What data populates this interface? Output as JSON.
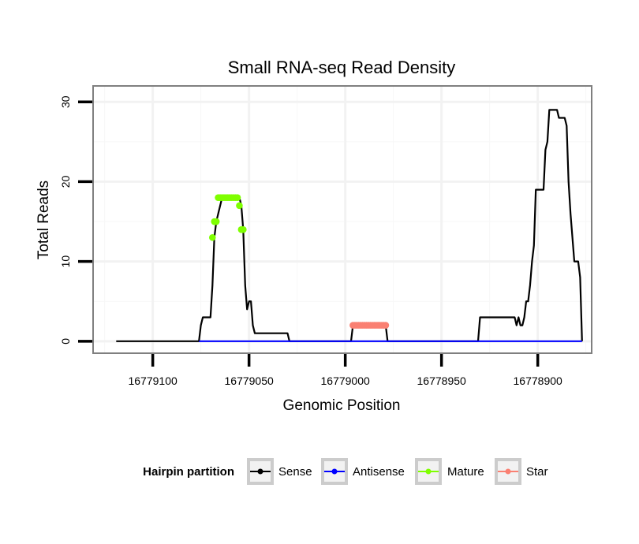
{
  "chart_data": {
    "type": "line",
    "title": "Small RNA-seq Read Density",
    "xlabel": "Genomic Position",
    "ylabel": "Total Reads",
    "xlim": [
      16779131,
      16778872
    ],
    "ylim": [
      -1.5,
      32
    ],
    "x_reversed": true,
    "grid": true,
    "x_ticks": [
      16779100,
      16779050,
      16779000,
      16778950,
      16778900
    ],
    "x_tick_labels": [
      "16779100",
      "16779050",
      "16779000",
      "16778950",
      "16778900"
    ],
    "y_ticks": [
      0,
      10,
      20,
      30
    ],
    "y_tick_labels": [
      "0",
      "10",
      "20",
      "30"
    ],
    "legend": {
      "title": "Hairpin partition",
      "position": "bottom",
      "entries": [
        {
          "label": "Sense",
          "color": "#000000"
        },
        {
          "label": "Antisense",
          "color": "#0000ff"
        },
        {
          "label": "Mature",
          "color": "#7fff00"
        },
        {
          "label": "Star",
          "color": "#fa8072"
        }
      ]
    },
    "series": [
      {
        "name": "Sense",
        "color": "#000000",
        "points": [
          [
            16779119,
            0
          ],
          [
            16779076,
            0
          ],
          [
            16779075,
            2
          ],
          [
            16779074,
            3
          ],
          [
            16779070,
            3
          ],
          [
            16779069,
            7
          ],
          [
            16779068,
            13
          ],
          [
            16779067,
            15
          ],
          [
            16779065,
            17
          ],
          [
            16779064,
            18
          ],
          [
            16779055,
            18
          ],
          [
            16779054,
            17
          ],
          [
            16779053,
            14
          ],
          [
            16779052,
            7
          ],
          [
            16779051,
            4
          ],
          [
            16779050,
            5
          ],
          [
            16779049,
            5
          ],
          [
            16779048,
            2
          ],
          [
            16779047,
            1
          ],
          [
            16779030,
            1
          ],
          [
            16779029,
            0
          ],
          [
            16778997,
            0
          ],
          [
            16778996,
            2
          ],
          [
            16778979,
            2
          ],
          [
            16778978,
            0
          ],
          [
            16778931,
            0
          ],
          [
            16778930,
            3
          ],
          [
            16778912,
            3
          ],
          [
            16778911,
            2
          ],
          [
            16778910,
            3
          ],
          [
            16778909,
            2
          ],
          [
            16778908,
            2
          ],
          [
            16778907,
            3
          ],
          [
            16778906,
            5
          ],
          [
            16778905,
            5
          ],
          [
            16778904,
            7
          ],
          [
            16778903,
            10
          ],
          [
            16778902,
            12
          ],
          [
            16778901,
            19
          ],
          [
            16778897,
            19
          ],
          [
            16778896,
            24
          ],
          [
            16778895,
            25
          ],
          [
            16778894,
            29
          ],
          [
            16778890,
            29
          ],
          [
            16778889,
            28
          ],
          [
            16778886,
            28
          ],
          [
            16778885,
            27
          ],
          [
            16778884,
            20
          ],
          [
            16778883,
            16
          ],
          [
            16778881,
            10
          ],
          [
            16778879,
            10
          ],
          [
            16778878,
            8
          ],
          [
            16778877,
            0
          ]
        ]
      },
      {
        "name": "Antisense",
        "color": "#0000ff",
        "points": [
          [
            16779076,
            0
          ],
          [
            16778877,
            0
          ]
        ]
      },
      {
        "name": "Mature",
        "color": "#7fff00",
        "points": [
          [
            16779069,
            13
          ],
          [
            16779068,
            15
          ],
          [
            16779067,
            15
          ],
          [
            16779066,
            18
          ],
          [
            16779065,
            18
          ],
          [
            16779064,
            18
          ],
          [
            16779063,
            18
          ],
          [
            16779062,
            18
          ],
          [
            16779061,
            18
          ],
          [
            16779060,
            18
          ],
          [
            16779059,
            18
          ],
          [
            16779058,
            18
          ],
          [
            16779057,
            18
          ],
          [
            16779056,
            18
          ],
          [
            16779055,
            17
          ],
          [
            16779054,
            14
          ],
          [
            16779053,
            14
          ]
        ]
      },
      {
        "name": "Star",
        "color": "#fa8072",
        "points": [
          [
            16778996,
            2
          ],
          [
            16778995,
            2
          ],
          [
            16778994,
            2
          ],
          [
            16778993,
            2
          ],
          [
            16778992,
            2
          ],
          [
            16778991,
            2
          ],
          [
            16778990,
            2
          ],
          [
            16778989,
            2
          ],
          [
            16778988,
            2
          ],
          [
            16778987,
            2
          ],
          [
            16778986,
            2
          ],
          [
            16778985,
            2
          ],
          [
            16778984,
            2
          ],
          [
            16778983,
            2
          ],
          [
            16778982,
            2
          ],
          [
            16778981,
            2
          ],
          [
            16778980,
            2
          ],
          [
            16778979,
            2
          ]
        ]
      }
    ]
  }
}
